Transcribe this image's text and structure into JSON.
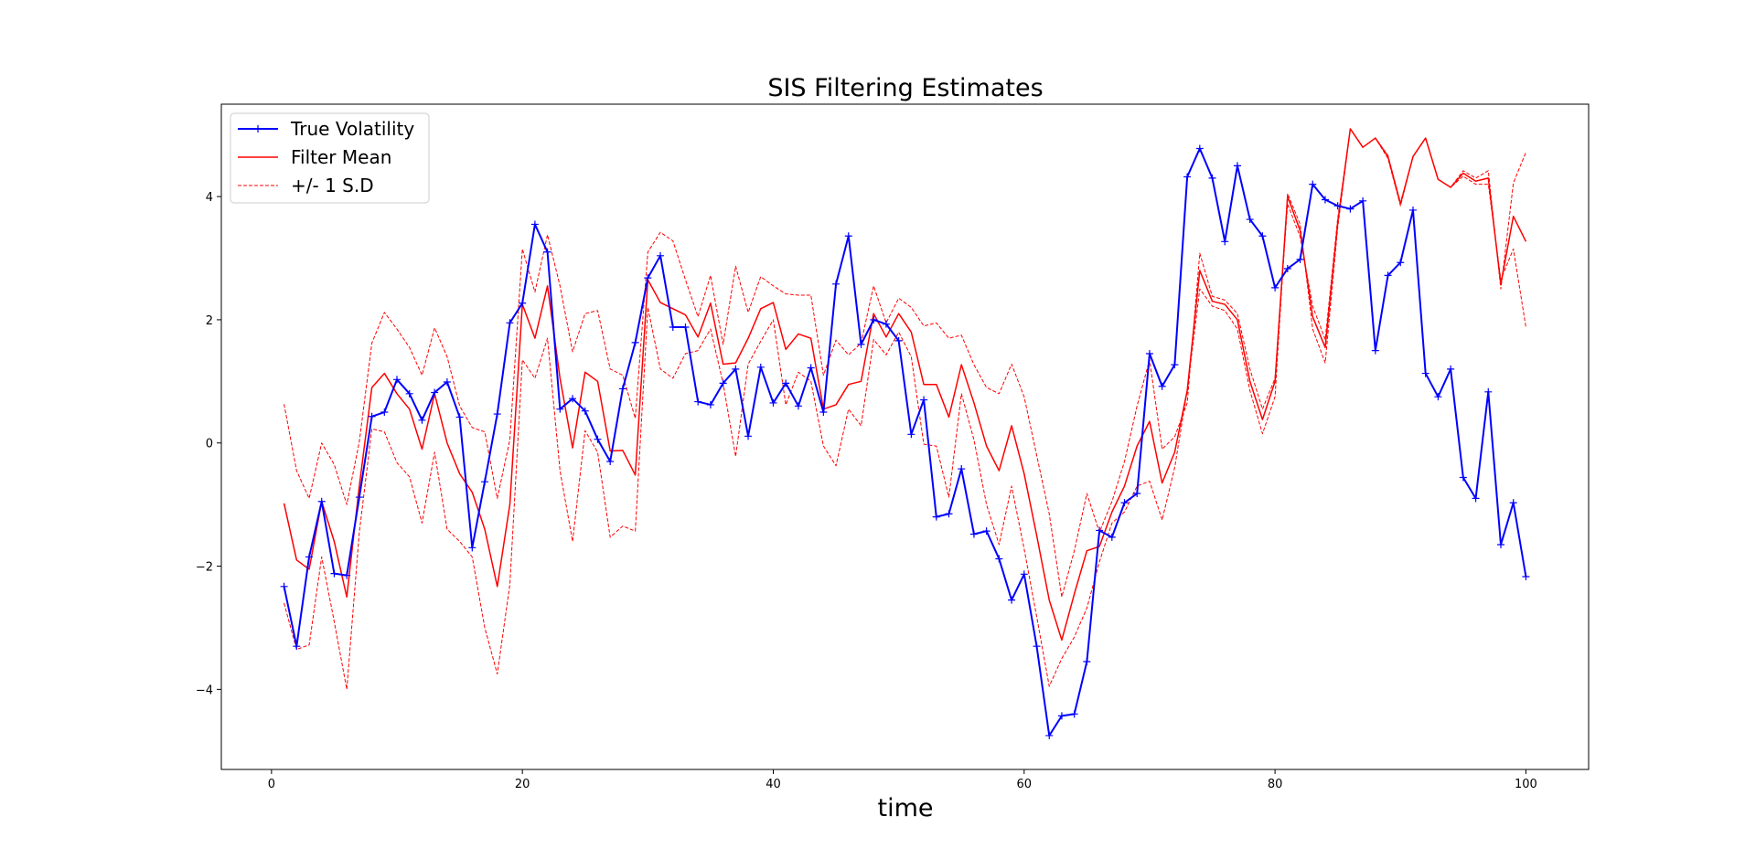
{
  "chart_data": {
    "type": "line",
    "title": "SIS Filtering Estimates",
    "xlabel": "time",
    "ylabel": "",
    "xlim": [
      -4,
      105
    ],
    "ylim": [
      -5.3,
      5.5
    ],
    "xticks": [
      0,
      20,
      40,
      60,
      80,
      100
    ],
    "yticks": [
      -4,
      -2,
      0,
      2,
      4
    ],
    "grid": false,
    "legend_position": "top-left",
    "x": [
      1,
      2,
      3,
      4,
      5,
      6,
      7,
      8,
      9,
      10,
      11,
      12,
      13,
      14,
      15,
      16,
      17,
      18,
      19,
      20,
      21,
      22,
      23,
      24,
      25,
      26,
      27,
      28,
      29,
      30,
      31,
      32,
      33,
      34,
      35,
      36,
      37,
      38,
      39,
      40,
      41,
      42,
      43,
      44,
      45,
      46,
      47,
      48,
      49,
      50,
      51,
      52,
      53,
      54,
      55,
      56,
      57,
      58,
      59,
      60,
      61,
      62,
      63,
      64,
      65,
      66,
      67,
      68,
      69,
      70,
      71,
      72,
      73,
      74,
      75,
      76,
      77,
      78,
      79,
      80,
      81,
      82,
      83,
      84,
      85,
      86,
      87,
      88,
      89,
      90,
      91,
      92,
      93,
      94,
      95,
      96,
      97,
      98,
      99,
      100
    ],
    "series": [
      {
        "name": "True Volatility",
        "color": "#0000ff",
        "style": "solid",
        "marker": "plus",
        "values": [
          -2.33,
          -3.3,
          -1.85,
          -0.95,
          -2.12,
          -2.15,
          -0.88,
          0.43,
          0.5,
          1.03,
          0.8,
          0.37,
          0.82,
          0.99,
          0.42,
          -1.7,
          -0.63,
          0.47,
          1.95,
          2.27,
          3.55,
          3.1,
          0.55,
          0.72,
          0.52,
          0.06,
          -0.3,
          0.88,
          1.63,
          2.68,
          3.04,
          1.88,
          1.88,
          0.67,
          0.62,
          0.97,
          1.2,
          0.11,
          1.23,
          0.65,
          0.97,
          0.6,
          1.22,
          0.5,
          2.58,
          3.36,
          1.6,
          2.0,
          1.93,
          1.66,
          0.14,
          0.7,
          -1.2,
          -1.15,
          -0.42,
          -1.48,
          -1.43,
          -1.88,
          -2.55,
          -2.13,
          -3.3,
          -4.75,
          -4.43,
          -4.4,
          -3.55,
          -1.42,
          -1.53,
          -0.97,
          -0.82,
          1.45,
          0.92,
          1.27,
          4.32,
          4.78,
          4.3,
          3.27,
          4.5,
          3.63,
          3.36,
          2.52,
          2.83,
          2.98,
          4.2,
          3.95,
          3.85,
          3.8,
          3.93,
          1.5,
          2.72,
          2.93,
          3.78,
          1.13,
          0.75,
          1.2,
          -0.56,
          -0.9,
          0.83,
          -1.65,
          -0.97,
          -2.17
        ]
      },
      {
        "name": "Filter Mean",
        "color": "#ff0000",
        "style": "solid",
        "values": [
          -0.98,
          -1.9,
          -2.05,
          -0.95,
          -1.6,
          -2.5,
          -0.7,
          0.9,
          1.13,
          0.8,
          0.55,
          -0.1,
          0.8,
          0.0,
          -0.5,
          -0.8,
          -1.4,
          -2.33,
          -1.0,
          2.25,
          1.7,
          2.55,
          1.05,
          -0.08,
          1.15,
          1.0,
          -0.13,
          -0.12,
          -0.52,
          2.65,
          2.28,
          2.18,
          2.08,
          1.72,
          2.27,
          1.28,
          1.3,
          1.7,
          2.18,
          2.28,
          1.52,
          1.77,
          1.7,
          0.55,
          0.62,
          0.95,
          1.0,
          2.1,
          1.72,
          2.1,
          1.8,
          0.95,
          0.95,
          0.42,
          1.27,
          0.65,
          -0.05,
          -0.45,
          0.28,
          -0.5,
          -1.5,
          -2.55,
          -3.2,
          -2.45,
          -1.75,
          -1.68,
          -1.12,
          -0.7,
          -0.05,
          0.35,
          -0.65,
          -0.15,
          0.85,
          2.8,
          2.3,
          2.25,
          2.0,
          1.0,
          0.38,
          1.0,
          4.0,
          3.45,
          2.05,
          1.55,
          3.58,
          5.1,
          4.8,
          4.95,
          4.65,
          3.88,
          4.65,
          4.95,
          4.28,
          4.15,
          4.38,
          4.25,
          4.3,
          2.58,
          3.68,
          3.27
        ]
      },
      {
        "name": "+/- 1 S.D",
        "color": "#ff0000",
        "style": "dashed",
        "values": [
          0.63,
          -0.45,
          -0.9,
          0.0,
          -0.35,
          -1.0,
          0.02,
          1.62,
          2.12,
          1.85,
          1.55,
          1.1,
          1.87,
          1.4,
          0.6,
          0.25,
          0.18,
          -0.9,
          0.05,
          3.15,
          2.45,
          3.38,
          2.55,
          1.48,
          2.1,
          2.15,
          1.2,
          1.1,
          0.4,
          3.1,
          3.42,
          3.28,
          2.65,
          2.05,
          2.72,
          1.6,
          2.87,
          2.12,
          2.7,
          2.55,
          2.42,
          2.4,
          2.4,
          1.1,
          1.67,
          1.43,
          1.62,
          2.55,
          1.95,
          2.35,
          2.2,
          1.9,
          1.95,
          1.7,
          1.75,
          1.27,
          0.9,
          0.8,
          1.28,
          0.75,
          -0.2,
          -1.15,
          -2.5,
          -1.75,
          -0.82,
          -1.45,
          -0.95,
          -0.3,
          0.6,
          1.35,
          -0.1,
          0.1,
          0.65,
          3.08,
          2.38,
          2.32,
          2.1,
          1.2,
          0.55,
          1.05,
          3.88,
          3.35,
          2.22,
          1.68,
          3.65,
          5.1,
          4.8,
          4.95,
          4.62,
          3.85,
          4.65,
          4.95,
          4.28,
          4.15,
          4.42,
          4.3,
          4.42,
          2.5,
          4.22,
          4.72
        ]
      },
      {
        "name": "+/- 1 S.D",
        "legend": false,
        "color": "#ff0000",
        "style": "dashed",
        "values": [
          -2.6,
          -3.35,
          -3.28,
          -1.85,
          -2.9,
          -4.0,
          -1.45,
          0.23,
          0.18,
          -0.32,
          -0.55,
          -1.3,
          -0.15,
          -1.4,
          -1.6,
          -1.85,
          -3.0,
          -3.75,
          -2.3,
          1.35,
          1.05,
          1.7,
          -0.45,
          -1.6,
          0.2,
          -0.15,
          -1.53,
          -1.35,
          -1.43,
          2.2,
          1.2,
          1.05,
          1.45,
          1.5,
          1.85,
          0.97,
          -0.22,
          1.28,
          1.65,
          2.0,
          0.62,
          1.15,
          1.0,
          -0.05,
          -0.37,
          0.55,
          0.28,
          1.68,
          1.43,
          1.8,
          1.4,
          -0.02,
          -0.05,
          -0.88,
          0.8,
          0.05,
          -1.0,
          -1.65,
          -0.7,
          -1.72,
          -2.82,
          -3.95,
          -3.5,
          -3.15,
          -2.68,
          -1.93,
          -1.3,
          -1.12,
          -0.7,
          -0.62,
          -1.25,
          -0.4,
          0.85,
          2.5,
          2.22,
          2.15,
          1.85,
          0.85,
          0.15,
          0.75,
          4.05,
          3.55,
          1.85,
          1.3,
          3.5,
          5.1,
          4.8,
          4.95,
          4.67,
          3.9,
          4.65,
          4.95,
          4.28,
          4.15,
          4.33,
          4.2,
          4.2,
          2.65,
          3.15,
          1.88
        ]
      }
    ]
  }
}
